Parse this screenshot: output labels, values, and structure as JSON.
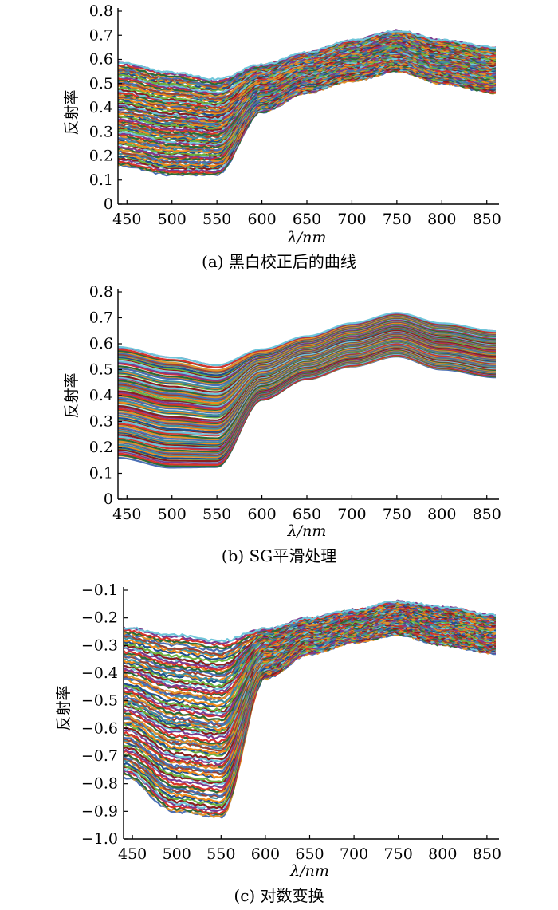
{
  "chart_data": [
    {
      "type": "line",
      "caption": "(a)  黑白校正后的曲线",
      "xlabel": "λ/nm",
      "ylabel": "反射率",
      "xlim": [
        440,
        860
      ],
      "ylim": [
        0,
        0.8
      ],
      "xticks": [
        450,
        500,
        550,
        600,
        650,
        700,
        750,
        800,
        850
      ],
      "yticks": [
        0,
        0.1,
        0.2,
        0.3,
        0.4,
        0.5,
        0.6,
        0.7,
        0.8
      ],
      "ytick_labels": [
        "0",
        "0.1",
        "0.2",
        "0.3",
        "0.4",
        "0.5",
        "0.6",
        "0.7",
        "0.8"
      ],
      "x": [
        440,
        500,
        550,
        600,
        650,
        700,
        750,
        800,
        860
      ],
      "series_count": 90,
      "envelope": {
        "upper": [
          0.59,
          0.55,
          0.52,
          0.58,
          0.63,
          0.68,
          0.72,
          0.68,
          0.65
        ],
        "lower": [
          0.16,
          0.12,
          0.12,
          0.38,
          0.46,
          0.51,
          0.55,
          0.5,
          0.46
        ]
      },
      "noisy": true
    },
    {
      "type": "line",
      "caption": "(b)  SG平滑处理",
      "xlabel": "λ/nm",
      "ylabel": "反射率",
      "xlim": [
        440,
        860
      ],
      "ylim": [
        0,
        0.8
      ],
      "xticks": [
        450,
        500,
        550,
        600,
        650,
        700,
        750,
        800,
        850
      ],
      "yticks": [
        0,
        0.1,
        0.2,
        0.3,
        0.4,
        0.5,
        0.6,
        0.7,
        0.8
      ],
      "ytick_labels": [
        "0",
        "0.1",
        "0.2",
        "0.3",
        "0.4",
        "0.5",
        "0.6",
        "0.7",
        "0.8"
      ],
      "x": [
        440,
        500,
        550,
        600,
        650,
        700,
        750,
        800,
        860
      ],
      "series_count": 90,
      "envelope": {
        "upper": [
          0.59,
          0.55,
          0.52,
          0.58,
          0.63,
          0.68,
          0.72,
          0.68,
          0.65
        ],
        "lower": [
          0.16,
          0.12,
          0.12,
          0.38,
          0.46,
          0.51,
          0.55,
          0.5,
          0.47
        ]
      },
      "noisy": false
    },
    {
      "type": "line",
      "caption": "(c)  对数变换",
      "xlabel": "λ/nm",
      "ylabel": "反射率",
      "xlim": [
        440,
        860
      ],
      "ylim": [
        -1.0,
        -0.1
      ],
      "xticks": [
        450,
        500,
        550,
        600,
        650,
        700,
        750,
        800,
        850
      ],
      "yticks": [
        -1.0,
        -0.9,
        -0.8,
        -0.7,
        -0.6,
        -0.5,
        -0.4,
        -0.3,
        -0.2,
        -0.1
      ],
      "ytick_labels": [
        "−1.0",
        "−0.9",
        "−0.8",
        "−0.7",
        "−0.6",
        "−0.5",
        "−0.4",
        "−0.3",
        "−0.2",
        "−0.1"
      ],
      "x": [
        440,
        500,
        550,
        600,
        650,
        700,
        750,
        800,
        860
      ],
      "series_count": 90,
      "envelope": {
        "upper": [
          -0.23,
          -0.26,
          -0.28,
          -0.24,
          -0.2,
          -0.17,
          -0.14,
          -0.16,
          -0.19
        ],
        "lower": [
          -0.78,
          -0.91,
          -0.93,
          -0.42,
          -0.33,
          -0.29,
          -0.26,
          -0.3,
          -0.33
        ]
      },
      "noisy": true
    }
  ],
  "palette": [
    "#4a6fb5",
    "#e0932a",
    "#2a6b3a",
    "#d7332b",
    "#7c3a8f",
    "#6ec6da",
    "#8b1e1e",
    "#6bb33f",
    "#1f4f8f",
    "#ef8b1a",
    "#3f8fa0",
    "#a04030"
  ]
}
